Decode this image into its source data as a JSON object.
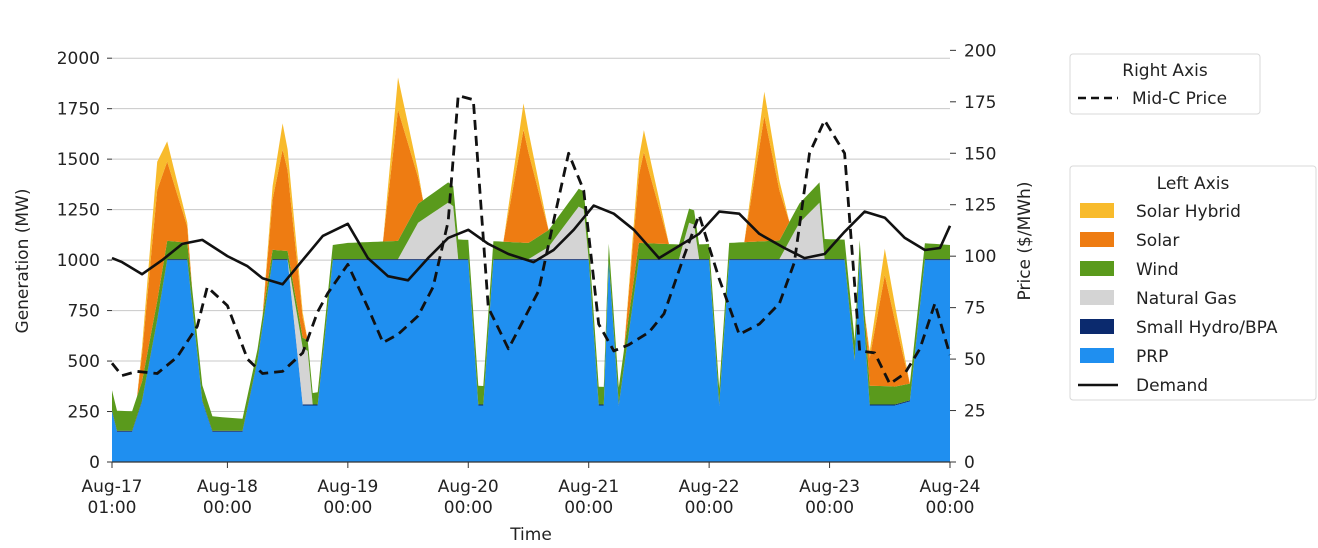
{
  "chart_data": {
    "type": "area",
    "xlabel": "Time",
    "ylabel": "Generation (MW)",
    "y2label": "Price ($/MWh)",
    "ylim": [
      0,
      2100
    ],
    "y2lim": [
      0,
      206
    ],
    "xlim": [
      "2023-08-17T01:00",
      "2023-08-24T00:00"
    ],
    "grid": "horizontal",
    "left_ticks": [
      "0",
      "250",
      "500",
      "750",
      "1000",
      "1250",
      "1500",
      "1750",
      "2000"
    ],
    "right_ticks": [
      "0",
      "25",
      "50",
      "75",
      "100",
      "125",
      "150",
      "175",
      "200"
    ],
    "x_ticks": [
      {
        "line1": "Aug-17",
        "line2": "01:00",
        "t": "2023-08-17T01:00"
      },
      {
        "line1": "Aug-18",
        "line2": "00:00",
        "t": "2023-08-18T00:00"
      },
      {
        "line1": "Aug-19",
        "line2": "00:00",
        "t": "2023-08-19T00:00"
      },
      {
        "line1": "Aug-20",
        "line2": "00:00",
        "t": "2023-08-20T00:00"
      },
      {
        "line1": "Aug-21",
        "line2": "00:00",
        "t": "2023-08-21T00:00"
      },
      {
        "line1": "Aug-22",
        "line2": "00:00",
        "t": "2023-08-22T00:00"
      },
      {
        "line1": "Aug-23",
        "line2": "00:00",
        "t": "2023-08-23T00:00"
      },
      {
        "line1": "Aug-24",
        "line2": "00:00",
        "t": "2023-08-24T00:00"
      }
    ],
    "legend_right": {
      "title": "Right Axis",
      "placement": "top-right, outside"
    },
    "legend_left": {
      "title": "Left Axis",
      "placement": "middle-right, outside"
    },
    "series": [
      {
        "name": "PRP",
        "color": "#1f8ff0",
        "kind": "stacked-area",
        "axis": "left",
        "x": [
          "2023-08-17T01:00",
          "2023-08-17T02:00",
          "2023-08-17T05:00",
          "2023-08-17T07:00",
          "2023-08-17T10:00",
          "2023-08-17T12:00",
          "2023-08-17T16:00",
          "2023-08-17T19:00",
          "2023-08-17T21:00",
          "2023-08-18T00:00",
          "2023-08-18T03:00",
          "2023-08-18T06:00",
          "2023-08-18T09:00",
          "2023-08-18T12:00",
          "2023-08-18T15:00",
          "2023-08-18T18:00",
          "2023-08-18T21:00",
          "2023-08-19T00:00",
          "2023-08-19T03:00",
          "2023-08-19T07:00",
          "2023-08-19T10:00",
          "2023-08-19T14:00",
          "2023-08-19T20:00",
          "2023-08-20T00:00",
          "2023-08-20T02:00",
          "2023-08-20T03:00",
          "2023-08-20T05:00",
          "2023-08-20T10:00",
          "2023-08-20T16:00",
          "2023-08-20T22:00",
          "2023-08-21T00:00",
          "2023-08-21T02:00",
          "2023-08-21T03:00",
          "2023-08-21T04:00",
          "2023-08-21T06:00",
          "2023-08-21T10:00",
          "2023-08-21T14:00",
          "2023-08-21T20:00",
          "2023-08-22T00:00",
          "2023-08-22T02:00",
          "2023-08-22T04:00",
          "2023-08-22T10:00",
          "2023-08-22T16:00",
          "2023-08-22T22:00",
          "2023-08-23T03:00",
          "2023-08-23T05:00",
          "2023-08-23T06:00",
          "2023-08-23T08:00",
          "2023-08-23T13:00",
          "2023-08-23T16:00",
          "2023-08-23T19:00",
          "2023-08-24T00:00"
        ],
        "values": [
          250,
          150,
          150,
          300,
          700,
          1000,
          1000,
          300,
          150,
          150,
          150,
          500,
          1000,
          1000,
          280,
          280,
          1000,
          1000,
          1000,
          1000,
          1000,
          1000,
          1000,
          1000,
          280,
          280,
          1000,
          1000,
          1000,
          1000,
          1000,
          280,
          280,
          990,
          280,
          1000,
          1000,
          1000,
          1000,
          280,
          1000,
          1000,
          1000,
          1000,
          1000,
          500,
          1000,
          280,
          280,
          300,
          1000,
          1000
        ]
      },
      {
        "name": "Small Hydro/BPA",
        "color": "#0b2a6e",
        "kind": "stacked-area",
        "axis": "left",
        "values_note": "about 5"
      },
      {
        "name": "Natural Gas",
        "color": "#d4d4d4",
        "kind": "stacked-area",
        "axis": "left",
        "x": [
          "2023-08-18T12:00",
          "2023-08-18T15:00",
          "2023-08-19T10:00",
          "2023-08-19T14:00",
          "2023-08-19T20:00",
          "2023-08-20T12:00",
          "2023-08-20T16:00",
          "2023-08-20T22:00",
          "2023-08-21T18:00",
          "2023-08-21T20:00",
          "2023-08-22T14:00",
          "2023-08-22T18:00",
          "2023-08-22T22:00"
        ],
        "values": [
          0,
          280,
          0,
          180,
          280,
          0,
          60,
          260,
          0,
          180,
          0,
          180,
          280
        ]
      },
      {
        "name": "Wind",
        "color": "#5a9a1c",
        "kind": "stacked-area",
        "axis": "left",
        "x": [
          "2023-08-17T01:00",
          "2023-08-17T12:00",
          "2023-08-18T12:00",
          "2023-08-19T00:00",
          "2023-08-19T20:00",
          "2023-08-20T12:00",
          "2023-08-21T00:00",
          "2023-08-21T20:00",
          "2023-08-22T12:00",
          "2023-08-22T22:00",
          "2023-08-23T12:00",
          "2023-08-24T00:00"
        ],
        "values": [
          100,
          90,
          40,
          80,
          100,
          80,
          90,
          70,
          90,
          100,
          90,
          70
        ]
      },
      {
        "name": "Solar",
        "color": "#ee7c12",
        "kind": "stacked-area",
        "axis": "left",
        "x": [
          "2023-08-17T06:00",
          "2023-08-17T10:00",
          "2023-08-17T17:00",
          "2023-08-18T07:00",
          "2023-08-18T11:00",
          "2023-08-18T16:00",
          "2023-08-19T07:00",
          "2023-08-19T10:00",
          "2023-08-19T15:00",
          "2023-08-20T07:00",
          "2023-08-20T11:00",
          "2023-08-20T16:00",
          "2023-08-21T07:00",
          "2023-08-21T11:00",
          "2023-08-21T16:00",
          "2023-08-22T07:00",
          "2023-08-22T11:00",
          "2023-08-22T16:00",
          "2023-08-23T07:00",
          "2023-08-23T11:00",
          "2023-08-23T16:00"
        ],
        "values": [
          0,
          550,
          0,
          0,
          500,
          0,
          0,
          650,
          0,
          0,
          560,
          0,
          0,
          450,
          0,
          0,
          620,
          0,
          0,
          550,
          0
        ]
      },
      {
        "name": "Solar Hybrid",
        "color": "#f8bb2c",
        "kind": "stacked-area",
        "axis": "left",
        "x": [
          "2023-08-17T06:00",
          "2023-08-17T10:00",
          "2023-08-17T17:00",
          "2023-08-18T07:00",
          "2023-08-18T11:00",
          "2023-08-18T16:00",
          "2023-08-19T07:00",
          "2023-08-19T10:00",
          "2023-08-19T15:00",
          "2023-08-20T07:00",
          "2023-08-20T11:00",
          "2023-08-20T16:00",
          "2023-08-21T07:00",
          "2023-08-21T11:00",
          "2023-08-21T16:00",
          "2023-08-22T07:00",
          "2023-08-22T11:00",
          "2023-08-22T16:00",
          "2023-08-23T07:00",
          "2023-08-23T11:00",
          "2023-08-23T16:00"
        ],
        "values": [
          0,
          140,
          0,
          0,
          130,
          0,
          0,
          160,
          0,
          0,
          130,
          0,
          0,
          110,
          0,
          0,
          120,
          0,
          0,
          130,
          0
        ]
      },
      {
        "name": "Demand",
        "color": "#111111",
        "kind": "line",
        "axis": "left",
        "x": [
          "2023-08-17T01:00",
          "2023-08-17T03:00",
          "2023-08-17T07:00",
          "2023-08-17T11:00",
          "2023-08-17T15:00",
          "2023-08-17T19:00",
          "2023-08-18T00:00",
          "2023-08-18T04:00",
          "2023-08-18T07:00",
          "2023-08-18T11:00",
          "2023-08-18T15:00",
          "2023-08-18T19:00",
          "2023-08-19T00:00",
          "2023-08-19T04:00",
          "2023-08-19T08:00",
          "2023-08-19T12:00",
          "2023-08-19T16:00",
          "2023-08-19T20:00",
          "2023-08-20T00:00",
          "2023-08-20T04:00",
          "2023-08-20T08:00",
          "2023-08-20T13:00",
          "2023-08-20T17:00",
          "2023-08-20T21:00",
          "2023-08-21T01:00",
          "2023-08-21T05:00",
          "2023-08-21T09:00",
          "2023-08-21T14:00",
          "2023-08-21T18:00",
          "2023-08-21T22:00",
          "2023-08-22T02:00",
          "2023-08-22T06:00",
          "2023-08-22T10:00",
          "2023-08-22T15:00",
          "2023-08-22T19:00",
          "2023-08-22T23:00",
          "2023-08-23T03:00",
          "2023-08-23T07:00",
          "2023-08-23T11:00",
          "2023-08-23T15:00",
          "2023-08-23T19:00",
          "2023-08-23T22:00",
          "2023-08-24T00:00"
        ],
        "values": [
          1010,
          990,
          930,
          1000,
          1080,
          1100,
          1020,
          970,
          910,
          880,
          1000,
          1120,
          1180,
          1010,
          920,
          900,
          1010,
          1110,
          1150,
          1080,
          1030,
          990,
          1050,
          1150,
          1270,
          1230,
          1150,
          1010,
          1070,
          1130,
          1240,
          1230,
          1130,
          1060,
          1010,
          1030,
          1140,
          1240,
          1210,
          1110,
          1050,
          1060,
          1170
        ]
      },
      {
        "name": "Mid-C Price",
        "color": "#111111",
        "kind": "dashed-line",
        "axis": "right",
        "x": [
          "2023-08-17T01:00",
          "2023-08-17T03:00",
          "2023-08-17T06:00",
          "2023-08-17T10:00",
          "2023-08-17T14:00",
          "2023-08-17T18:00",
          "2023-08-17T20:00",
          "2023-08-18T00:00",
          "2023-08-18T04:00",
          "2023-08-18T07:00",
          "2023-08-18T11:00",
          "2023-08-18T15:00",
          "2023-08-18T18:00",
          "2023-08-18T20:00",
          "2023-08-19T00:00",
          "2023-08-19T04:00",
          "2023-08-19T07:00",
          "2023-08-19T10:00",
          "2023-08-19T14:00",
          "2023-08-19T17:00",
          "2023-08-19T20:00",
          "2023-08-19T22:00",
          "2023-08-20T01:00",
          "2023-08-20T04:00",
          "2023-08-20T08:00",
          "2023-08-20T11:00",
          "2023-08-20T14:00",
          "2023-08-20T17:00",
          "2023-08-20T20:00",
          "2023-08-20T23:00",
          "2023-08-21T02:00",
          "2023-08-21T05:00",
          "2023-08-21T08:00",
          "2023-08-21T12:00",
          "2023-08-21T15:00",
          "2023-08-21T19:00",
          "2023-08-21T22:00",
          "2023-08-22T02:00",
          "2023-08-22T06:00",
          "2023-08-22T10:00",
          "2023-08-22T14:00",
          "2023-08-22T17:00",
          "2023-08-22T20:00",
          "2023-08-22T23:00",
          "2023-08-23T03:00",
          "2023-08-23T06:00",
          "2023-08-23T09:00",
          "2023-08-23T12:00",
          "2023-08-23T15:00",
          "2023-08-23T18:00",
          "2023-08-23T21:00",
          "2023-08-24T00:00"
        ],
        "values": [
          48,
          42,
          44,
          43,
          51,
          66,
          85,
          76,
          50,
          43,
          44,
          53,
          73,
          82,
          96,
          75,
          58,
          62,
          71,
          85,
          117,
          178,
          176,
          75,
          55,
          69,
          83,
          117,
          150,
          132,
          67,
          54,
          57,
          63,
          72,
          100,
          120,
          89,
          62,
          67,
          77,
          97,
          150,
          166,
          150,
          54,
          53,
          38,
          43,
          55,
          77,
          52
        ]
      }
    ]
  },
  "legend": {
    "right_title": "Right Axis",
    "right_items": [
      {
        "label": "Mid-C Price"
      }
    ],
    "left_title": "Left Axis",
    "left_items": [
      {
        "label": "Solar Hybrid",
        "color": "#f8bb2c",
        "kind": "patch"
      },
      {
        "label": "Solar",
        "color": "#ee7c12",
        "kind": "patch"
      },
      {
        "label": "Wind",
        "color": "#5a9a1c",
        "kind": "patch"
      },
      {
        "label": "Natural Gas",
        "color": "#d4d4d4",
        "kind": "patch"
      },
      {
        "label": "Small Hydro/BPA",
        "color": "#0b2a6e",
        "kind": "patch"
      },
      {
        "label": "PRP",
        "color": "#1f8ff0",
        "kind": "patch"
      },
      {
        "label": "Demand",
        "color": "#111111",
        "kind": "line"
      }
    ]
  }
}
